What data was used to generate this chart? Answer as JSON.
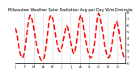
{
  "title": "Milwaukee Weather Solar Radiation Avg per Day W/m2/minute",
  "line_color": "#ff0000",
  "background_color": "#ffffff",
  "grid_color": "#808080",
  "ylim": [
    0,
    8
  ],
  "ytick_labels": [
    "0",
    "1",
    "2",
    "3",
    "4",
    "5",
    "6",
    "7",
    "8"
  ],
  "ytick_values": [
    0,
    1,
    2,
    3,
    4,
    5,
    6,
    7,
    8
  ],
  "ylabel_fontsize": 3.0,
  "xlabel_fontsize": 2.8,
  "title_fontsize": 3.5,
  "num_points": 112,
  "y_values": [
    5.5,
    5.0,
    4.2,
    3.2,
    2.2,
    1.5,
    1.0,
    0.8,
    1.0,
    1.5,
    2.5,
    3.8,
    5.0,
    6.2,
    7.0,
    7.5,
    7.2,
    6.8,
    6.0,
    5.2,
    4.2,
    3.2,
    2.5,
    1.8,
    1.2,
    0.8,
    0.5,
    0.4,
    0.5,
    0.8,
    1.5,
    2.5,
    3.8,
    5.2,
    6.5,
    7.2,
    7.5,
    7.2,
    6.8,
    6.0,
    5.0,
    4.0,
    3.2,
    2.5,
    2.0,
    1.8,
    2.0,
    2.5,
    3.2,
    4.0,
    4.8,
    5.5,
    5.8,
    5.5,
    4.8,
    4.0,
    3.2,
    2.5,
    1.8,
    1.5,
    1.8,
    2.5,
    3.5,
    4.8,
    6.0,
    7.0,
    7.5,
    7.2,
    6.5,
    5.5,
    4.5,
    3.5,
    2.8,
    2.0,
    1.5,
    1.0,
    0.8,
    1.0,
    1.5,
    2.2,
    3.2,
    4.5,
    6.0,
    7.2,
    7.8,
    7.5,
    6.8,
    6.0,
    5.0,
    4.0,
    3.0,
    2.2,
    1.5,
    1.0,
    0.8,
    1.0,
    1.5,
    2.5,
    3.5,
    4.5,
    5.5,
    6.2,
    6.5,
    6.2,
    5.5,
    4.5,
    3.5,
    2.5,
    1.8,
    1.2,
    0.8,
    0.6
  ],
  "x_month_ticks": [
    0,
    9.3,
    18.7,
    28,
    37.3,
    46.7,
    56,
    65.3,
    74.7,
    84,
    93.3,
    102.7,
    111
  ],
  "x_month_labels": [
    "J",
    "F",
    "M",
    "A",
    "M",
    "J",
    "J",
    "A",
    "S",
    "O",
    "N",
    "D",
    ""
  ],
  "vgrid_positions": [
    9.3,
    18.7,
    28,
    37.3,
    46.7,
    56,
    65.3,
    74.7,
    84,
    93.3,
    102.7
  ],
  "line_width": 1.2,
  "dash_on": 4.0,
  "dash_off": 1.8
}
